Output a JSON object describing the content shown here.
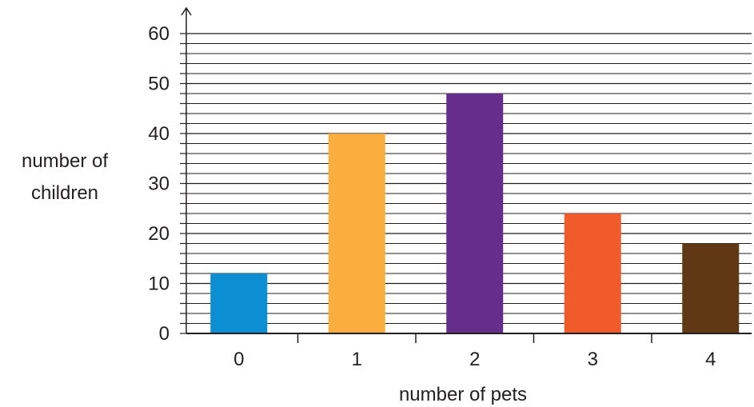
{
  "chart_data": {
    "type": "bar",
    "categories": [
      "0",
      "1",
      "2",
      "3",
      "4"
    ],
    "values": [
      12,
      40,
      48,
      24,
      18
    ],
    "colors": [
      "#0b8fd2",
      "#fbae3e",
      "#662d8c",
      "#f15a2b",
      "#603814"
    ],
    "xlabel": "number of pets",
    "ylabel_lines": [
      "number of",
      "children"
    ],
    "ylim": [
      0,
      60
    ],
    "yticks": [
      0,
      10,
      20,
      30,
      40,
      50,
      60
    ],
    "minor_grid_step": 2,
    "grid": true,
    "axis_color": "#231f20",
    "grid_color": "#231f20"
  }
}
